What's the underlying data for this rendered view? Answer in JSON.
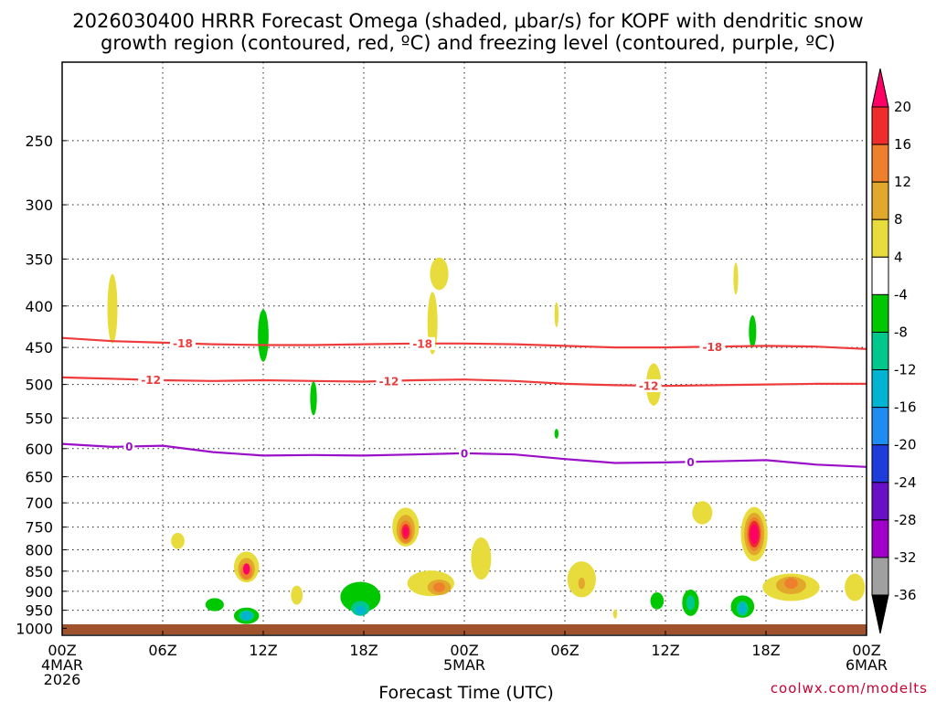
{
  "chart_data": {
    "type": "heatmap",
    "title": "2026030400 HRRR Forecast Omega (shaded, μbar/s) for KOPF with dendritic snow growth region (contoured, red, ºC) and freezing level (contoured, purple, ºC)",
    "xlabel": "Forecast Time (UTC)",
    "ylabel": "",
    "x_range_hours": [
      0,
      48
    ],
    "y_range_hpa": [
      1020,
      200
    ],
    "y_ticks": [
      250,
      300,
      350,
      400,
      450,
      500,
      550,
      600,
      650,
      700,
      750,
      800,
      850,
      900,
      950,
      1000
    ],
    "x_ticks": [
      {
        "hour": 0,
        "lines": [
          "00Z",
          "4MAR",
          "2026"
        ]
      },
      {
        "hour": 6,
        "lines": [
          "06Z"
        ]
      },
      {
        "hour": 12,
        "lines": [
          "12Z"
        ]
      },
      {
        "hour": 18,
        "lines": [
          "18Z"
        ]
      },
      {
        "hour": 24,
        "lines": [
          "00Z",
          "5MAR"
        ]
      },
      {
        "hour": 30,
        "lines": [
          "06Z"
        ]
      },
      {
        "hour": 36,
        "lines": [
          "12Z"
        ]
      },
      {
        "hour": 42,
        "lines": [
          "18Z"
        ]
      },
      {
        "hour": 48,
        "lines": [
          "00Z",
          "6MAR"
        ]
      }
    ],
    "colorbar": {
      "ticks": [
        "20",
        "16",
        "12",
        "8",
        "4",
        "-4",
        "-8",
        "-12",
        "-16",
        "-20",
        "-24",
        "-28",
        "-32",
        "-36"
      ],
      "colors": [
        "#ff0066",
        "#ee2c2c",
        "#ee7f2d",
        "#e1a82c",
        "#e8dc3c",
        "#ffffff",
        "#00c800",
        "#00c88c",
        "#00b4d2",
        "#1e8cf0",
        "#1e3cdc",
        "#6a0fc8",
        "#a000c8",
        "#a0a0a0",
        "#000000"
      ]
    },
    "contours": [
      {
        "name": "dendritic-top",
        "label": "-18",
        "color": "#ee3c3c",
        "hours": [
          0,
          3,
          6,
          9,
          12,
          15,
          18,
          21,
          24,
          27,
          30,
          33,
          36,
          39,
          42,
          45,
          48
        ],
        "hpa": [
          438,
          442,
          444,
          446,
          447,
          447,
          446,
          445,
          445,
          446,
          448,
          450,
          450,
          449,
          448,
          449,
          452
        ],
        "label_hours": [
          7.2,
          21.5,
          38.8
        ]
      },
      {
        "name": "dendritic-bottom",
        "label": "-12",
        "color": "#ee3c3c",
        "hours": [
          0,
          3,
          6,
          9,
          12,
          15,
          18,
          21,
          24,
          27,
          30,
          33,
          36,
          39,
          42,
          45,
          48
        ],
        "hpa": [
          490,
          492,
          494,
          495,
          494,
          495,
          496,
          494,
          493,
          495,
          499,
          501,
          502,
          501,
          500,
          499,
          499
        ],
        "label_hours": [
          5.3,
          19.5,
          35.0
        ]
      },
      {
        "name": "freezing-level",
        "label": "0",
        "color": "#9a10c8",
        "hours": [
          0,
          3,
          6,
          9,
          12,
          15,
          18,
          21,
          24,
          27,
          30,
          33,
          36,
          39,
          42,
          45,
          48
        ],
        "hpa": [
          592,
          597,
          595,
          606,
          612,
          611,
          612,
          610,
          608,
          610,
          618,
          625,
          624,
          622,
          620,
          628,
          632
        ],
        "label_hours": [
          4.0,
          24.0,
          37.5
        ]
      }
    ],
    "omega_features": [
      {
        "hour": 3.0,
        "hpa": 403,
        "hw": 0.3,
        "hh": 75,
        "level": 4
      },
      {
        "hour": 12.0,
        "hpa": 435,
        "hw": 0.32,
        "hh": 60,
        "level": -4
      },
      {
        "hour": 15.0,
        "hpa": 520,
        "hw": 0.2,
        "hh": 45,
        "level": -4
      },
      {
        "hour": 22.1,
        "hpa": 420,
        "hw": 0.3,
        "hh": 70,
        "level": 4
      },
      {
        "hour": 22.5,
        "hpa": 365,
        "hw": 0.55,
        "hh": 30,
        "level": 4
      },
      {
        "hour": 29.5,
        "hpa": 410,
        "hw": 0.12,
        "hh": 25,
        "level": 4
      },
      {
        "hour": 29.5,
        "hpa": 575,
        "hw": 0.12,
        "hh": 10,
        "level": -4
      },
      {
        "hour": 35.3,
        "hpa": 500,
        "hw": 0.45,
        "hh": 55,
        "level": 4
      },
      {
        "hour": 40.2,
        "hpa": 370,
        "hw": 0.14,
        "hh": 30,
        "level": 4
      },
      {
        "hour": 41.2,
        "hpa": 430,
        "hw": 0.22,
        "hh": 35,
        "level": -4
      },
      {
        "hour": 6.9,
        "hpa": 780,
        "hw": 0.4,
        "hh": 28,
        "level": 4
      },
      {
        "hour": 9.1,
        "hpa": 935,
        "hw": 0.55,
        "hh": 25,
        "level": -4
      },
      {
        "hour": 11.0,
        "hpa": 840,
        "hw": 0.75,
        "hh": 65,
        "level": 4
      },
      {
        "hour": 11.0,
        "hpa": 845,
        "hw": 0.5,
        "hh": 45,
        "level": 8
      },
      {
        "hour": 11.0,
        "hpa": 850,
        "hw": 0.35,
        "hh": 30,
        "level": 12
      },
      {
        "hour": 11.0,
        "hpa": 845,
        "hw": 0.2,
        "hh": 18,
        "level": 20
      },
      {
        "hour": 11.0,
        "hpa": 965,
        "hw": 0.75,
        "hh": 35,
        "level": -4
      },
      {
        "hour": 11.0,
        "hpa": 965,
        "hw": 0.45,
        "hh": 20,
        "level": -8
      },
      {
        "hour": 11.0,
        "hpa": 965,
        "hw": 0.3,
        "hh": 14,
        "level": -16
      },
      {
        "hour": 14.0,
        "hpa": 910,
        "hw": 0.35,
        "hh": 40,
        "level": 4
      },
      {
        "hour": 17.8,
        "hpa": 915,
        "hw": 1.2,
        "hh": 70,
        "level": -4
      },
      {
        "hour": 17.8,
        "hpa": 945,
        "hw": 0.55,
        "hh": 30,
        "level": -8
      },
      {
        "hour": 17.8,
        "hpa": 950,
        "hw": 0.3,
        "hh": 15,
        "level": -16
      },
      {
        "hour": 20.5,
        "hpa": 750,
        "hw": 0.8,
        "hh": 75,
        "level": 4
      },
      {
        "hour": 20.5,
        "hpa": 755,
        "hw": 0.55,
        "hh": 55,
        "level": 8
      },
      {
        "hour": 20.5,
        "hpa": 760,
        "hw": 0.38,
        "hh": 40,
        "level": 12
      },
      {
        "hour": 20.5,
        "hpa": 760,
        "hw": 0.25,
        "hh": 25,
        "level": 16
      },
      {
        "hour": 20.5,
        "hpa": 760,
        "hw": 0.15,
        "hh": 15,
        "level": 20
      },
      {
        "hour": 22.0,
        "hpa": 880,
        "hw": 1.4,
        "hh": 55,
        "level": 4
      },
      {
        "hour": 22.5,
        "hpa": 890,
        "hw": 0.7,
        "hh": 30,
        "level": 8
      },
      {
        "hour": 22.5,
        "hpa": 890,
        "hw": 0.35,
        "hh": 15,
        "level": 12
      },
      {
        "hour": 25.0,
        "hpa": 820,
        "hw": 0.6,
        "hh": 90,
        "level": 4
      },
      {
        "hour": 31.0,
        "hpa": 870,
        "hw": 0.85,
        "hh": 80,
        "level": 4
      },
      {
        "hour": 31.0,
        "hpa": 880,
        "hw": 0.2,
        "hh": 20,
        "level": 8
      },
      {
        "hour": 33.0,
        "hpa": 960,
        "hw": 0.12,
        "hh": 15,
        "level": 4
      },
      {
        "hour": 35.5,
        "hpa": 925,
        "hw": 0.4,
        "hh": 35,
        "level": -4
      },
      {
        "hour": 37.5,
        "hpa": 930,
        "hw": 0.5,
        "hh": 60,
        "level": -4
      },
      {
        "hour": 37.5,
        "hpa": 930,
        "hw": 0.25,
        "hh": 30,
        "level": -8
      },
      {
        "hour": 38.2,
        "hpa": 720,
        "hw": 0.6,
        "hh": 40,
        "level": 4
      },
      {
        "hour": 40.6,
        "hpa": 940,
        "hw": 0.7,
        "hh": 50,
        "level": -4
      },
      {
        "hour": 40.6,
        "hpa": 945,
        "hw": 0.35,
        "hh": 30,
        "level": -8
      },
      {
        "hour": 40.6,
        "hpa": 945,
        "hw": 0.2,
        "hh": 20,
        "level": -16
      },
      {
        "hour": 41.3,
        "hpa": 765,
        "hw": 0.8,
        "hh": 110,
        "level": 4
      },
      {
        "hour": 41.3,
        "hpa": 765,
        "hw": 0.6,
        "hh": 85,
        "level": 8
      },
      {
        "hour": 41.3,
        "hpa": 765,
        "hw": 0.45,
        "hh": 65,
        "level": 12
      },
      {
        "hour": 41.3,
        "hpa": 765,
        "hw": 0.35,
        "hh": 50,
        "level": 16
      },
      {
        "hour": 41.3,
        "hpa": 765,
        "hw": 0.25,
        "hh": 35,
        "level": 20
      },
      {
        "hour": 43.5,
        "hpa": 890,
        "hw": 1.7,
        "hh": 60,
        "level": 4
      },
      {
        "hour": 43.5,
        "hpa": 885,
        "hw": 0.9,
        "hh": 35,
        "level": 8
      },
      {
        "hour": 43.5,
        "hpa": 880,
        "hw": 0.4,
        "hh": 18,
        "level": 12
      },
      {
        "hour": 47.3,
        "hpa": 890,
        "hw": 0.6,
        "hh": 60,
        "level": 4
      }
    ]
  },
  "credit": "coolwx.com/modelts"
}
